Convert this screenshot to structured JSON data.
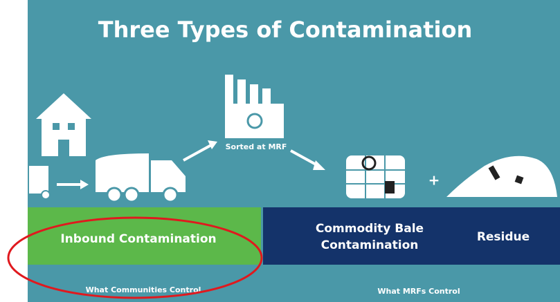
{
  "title": "Three Types of Contamination",
  "process": {
    "sorted_label": "Sorted at MRF"
  },
  "categories": {
    "inbound": "Inbound Contamination",
    "commodity_bale": [
      "Commodity Bale",
      "Contamination"
    ],
    "residue": "Residue"
  },
  "control": {
    "communities": "What Communities Control",
    "mrfs": "What MRFs Control"
  }
}
